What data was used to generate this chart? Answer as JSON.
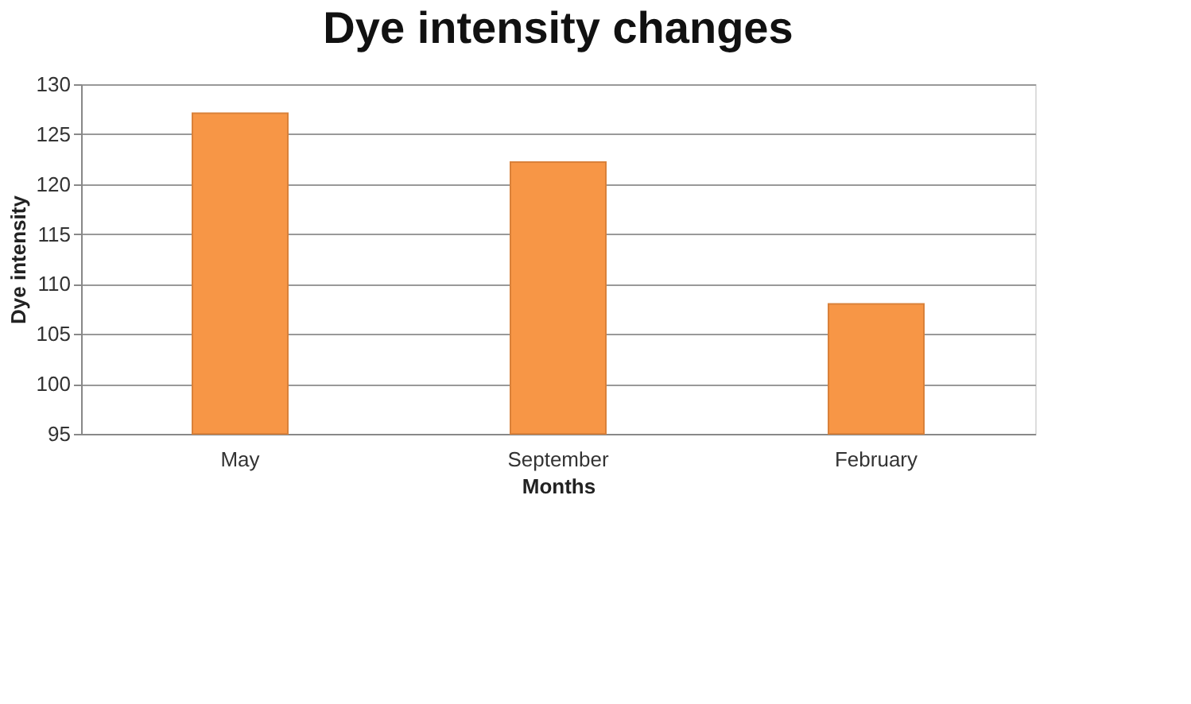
{
  "chart_data": {
    "type": "bar",
    "title": "Dye intensity changes",
    "xlabel": "Months",
    "ylabel": "Dye intensity",
    "categories": [
      "May",
      "September",
      "February"
    ],
    "values": [
      127.1,
      122.2,
      108
    ],
    "color": "#f79646",
    "ylim": [
      95,
      130
    ],
    "yticks": [
      95,
      100,
      105,
      110,
      115,
      120,
      125,
      130
    ],
    "grid": "y"
  }
}
